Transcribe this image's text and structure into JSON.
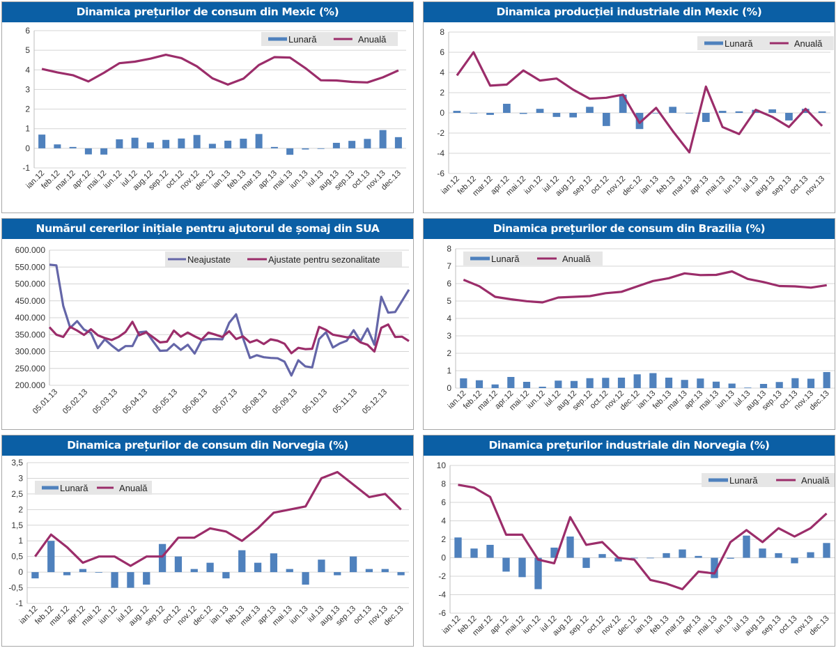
{
  "colors": {
    "title_bg": "#0b5fa5",
    "bar": "#4f81bd",
    "line": "#9b2d6a",
    "line_blue": "#6466a8",
    "legend_bg": "#e6e6e6"
  },
  "chart_data": [
    {
      "id": "mexic-cpi",
      "type": "bar+line",
      "title": "Dinamica prețurilor de consum din Mexic (%)",
      "categories": [
        "ian.12",
        "feb.12",
        "mar.12",
        "apr.12",
        "mai.12",
        "iun.12",
        "iul.12",
        "aug.12",
        "sep.12",
        "oct.12",
        "nov.12",
        "dec.12",
        "ian.13",
        "feb.13",
        "mar.13",
        "apr.13",
        "mai.13",
        "iun.13",
        "iul.13",
        "aug.13",
        "sep.13",
        "oct.13",
        "nov.13",
        "dec.13"
      ],
      "series": [
        {
          "name": "Lunară",
          "kind": "bar",
          "values": [
            0.7,
            0.2,
            0.07,
            -0.31,
            -0.32,
            0.46,
            0.54,
            0.3,
            0.43,
            0.5,
            0.68,
            0.23,
            0.39,
            0.49,
            0.73,
            0.07,
            -0.33,
            -0.06,
            -0.03,
            0.28,
            0.38,
            0.48,
            0.93,
            0.57
          ]
        },
        {
          "name": "Anuală",
          "kind": "line",
          "values": [
            4.05,
            3.87,
            3.73,
            3.41,
            3.85,
            4.34,
            4.42,
            4.57,
            4.77,
            4.6,
            4.18,
            3.57,
            3.25,
            3.55,
            4.25,
            4.65,
            4.63,
            4.09,
            3.47,
            3.46,
            3.39,
            3.36,
            3.62,
            3.97
          ]
        }
      ],
      "yticks": [
        "6",
        "5",
        "4",
        "3",
        "2",
        "1",
        "0",
        "-1"
      ],
      "ylim": [
        -1,
        6
      ],
      "legend": [
        "Lunară",
        "Anuală"
      ],
      "legend_position": "top-right",
      "grid": true
    },
    {
      "id": "mexic-ip",
      "type": "bar+line",
      "title": "Dinamica producției industriale din Mexic (%)",
      "categories": [
        "ian.12",
        "feb.12",
        "mar.12",
        "apr.12",
        "mai.12",
        "iun.12",
        "iul.12",
        "aug.12",
        "sep.12",
        "oct.12",
        "nov.12",
        "dec.12",
        "ian.13",
        "feb.13",
        "mar.13",
        "apr.13",
        "mai.13",
        "iun.13",
        "iul.13",
        "aug.13",
        "sep.13",
        "oct.13",
        "nov.13"
      ],
      "series": [
        {
          "name": "Lunară",
          "kind": "bar",
          "values": [
            0.2,
            0.0,
            -0.2,
            0.9,
            -0.1,
            0.4,
            -0.4,
            -0.45,
            0.6,
            -1.3,
            1.8,
            -1.6,
            0.0,
            0.6,
            0.0,
            -0.9,
            0.2,
            0.15,
            0.3,
            0.35,
            -0.75,
            0.4,
            0.15
          ]
        },
        {
          "name": "Anuală",
          "kind": "line",
          "values": [
            3.7,
            6.0,
            2.7,
            2.8,
            4.2,
            3.2,
            3.4,
            2.3,
            1.4,
            1.5,
            1.8,
            -1.0,
            0.5,
            -1.8,
            -3.9,
            2.6,
            -1.4,
            -2.1,
            0.3,
            -0.4,
            -1.4,
            0.4,
            -1.3
          ]
        }
      ],
      "yticks": [
        "8",
        "6",
        "4",
        "2",
        "0",
        "-2",
        "-4",
        "-6"
      ],
      "ylim": [
        -6,
        8
      ],
      "legend": [
        "Lunară",
        "Anuală"
      ],
      "legend_position": "top-right",
      "grid": true
    },
    {
      "id": "sua-claims",
      "type": "line",
      "title": "Numărul cererilor inițiale pentru ajutorul de șomaj din SUA",
      "x_tick_labels": [
        "05.01.13",
        "05.02.13",
        "05.03.13",
        "05.04.13",
        "05.05.13",
        "05.06.13",
        "05.07.13",
        "05.08.13",
        "05.09.13",
        "05.10.13",
        "05.11.13",
        "05.12.13"
      ],
      "series": [
        {
          "name": "Neajustate",
          "kind": "line",
          "values": [
            557000,
            555000,
            435000,
            370000,
            390000,
            365000,
            355000,
            310000,
            336000,
            318000,
            302000,
            316000,
            316000,
            357000,
            359000,
            330000,
            302000,
            303000,
            322000,
            305000,
            320000,
            294000,
            333000,
            337000,
            337000,
            336000,
            385000,
            410000,
            340000,
            281000,
            289000,
            283000,
            281000,
            280000,
            270000,
            229000,
            274000,
            256000,
            253000,
            337000,
            357000,
            312000,
            324000,
            332000,
            363000,
            330000,
            368000,
            320000,
            462000,
            415000,
            417000,
            450000,
            483000
          ]
        },
        {
          "name": "Ajustate pentru sezonalitate",
          "kind": "line",
          "values": [
            372000,
            350000,
            343000,
            373000,
            362000,
            349000,
            366000,
            348000,
            340000,
            334000,
            343000,
            358000,
            388000,
            348000,
            357000,
            342000,
            327000,
            329000,
            362000,
            344000,
            356000,
            345000,
            335000,
            356000,
            350000,
            343000,
            360000,
            337000,
            345000,
            327000,
            334000,
            322000,
            336000,
            332000,
            323000,
            295000,
            311000,
            307000,
            308000,
            373000,
            364000,
            350000,
            346000,
            342000,
            343000,
            327000,
            320000,
            300000,
            370000,
            380000,
            343000,
            344000,
            331000
          ]
        }
      ],
      "yticks": [
        "600.000",
        "550.000",
        "500.000",
        "450.000",
        "400.000",
        "350.000",
        "300.000",
        "250.000",
        "200.000"
      ],
      "ylim": [
        200000,
        600000
      ],
      "legend": [
        "Neajustate",
        "Ajustate pentru sezonalitate"
      ],
      "legend_position": "top-right",
      "grid": true
    },
    {
      "id": "brazilia-cpi",
      "type": "bar+line",
      "title": "Dinamica prețurilor de consum din Brazilia (%)",
      "categories": [
        "ian.12",
        "feb.12",
        "mar.12",
        "apr.12",
        "mai.12",
        "iun.12",
        "iul.12",
        "aug.12",
        "sep.12",
        "oct.12",
        "nov.12",
        "dec.12",
        "ian.13",
        "feb.13",
        "mar.13",
        "apr.13",
        "mai.13",
        "iun.13",
        "iul.13",
        "aug.13",
        "sep.13",
        "oct.13",
        "nov.13",
        "dec.13"
      ],
      "series": [
        {
          "name": "Lunară",
          "kind": "bar",
          "values": [
            0.56,
            0.45,
            0.21,
            0.64,
            0.36,
            0.08,
            0.43,
            0.41,
            0.57,
            0.59,
            0.6,
            0.79,
            0.86,
            0.6,
            0.47,
            0.55,
            0.37,
            0.26,
            0.03,
            0.24,
            0.35,
            0.57,
            0.54,
            0.92
          ]
        },
        {
          "name": "Anuală",
          "kind": "line",
          "values": [
            6.22,
            5.85,
            5.24,
            5.1,
            4.99,
            4.92,
            5.2,
            5.24,
            5.28,
            5.45,
            5.53,
            5.84,
            6.15,
            6.31,
            6.59,
            6.49,
            6.5,
            6.7,
            6.27,
            6.09,
            5.86,
            5.84,
            5.77,
            5.91
          ]
        }
      ],
      "yticks": [
        "8",
        "7",
        "6",
        "5",
        "4",
        "3",
        "2",
        "1",
        "0"
      ],
      "ylim": [
        0,
        8
      ],
      "legend": [
        "Lunară",
        "Anuală"
      ],
      "legend_position": "top-left",
      "grid": true
    },
    {
      "id": "norvegia-cpi",
      "type": "bar+line",
      "title": "Dinamica prețurilor de consum din Norvegia (%)",
      "categories": [
        "ian.12",
        "feb.12",
        "mar.12",
        "apr.12",
        "mai.12",
        "iun.12",
        "iul.12",
        "aug.12",
        "sep.12",
        "oct.12",
        "nov.12",
        "dec.12",
        "ian.13",
        "feb.13",
        "mar.13",
        "apr.13",
        "mai.13",
        "iun.13",
        "iul.13",
        "aug.13",
        "sep.13",
        "oct.13",
        "nov.13",
        "dec.13"
      ],
      "series": [
        {
          "name": "Lunară",
          "kind": "bar",
          "values": [
            -0.2,
            1.0,
            -0.1,
            0.1,
            0.0,
            -0.5,
            -0.5,
            -0.4,
            0.9,
            0.5,
            0.1,
            0.3,
            -0.2,
            0.7,
            0.3,
            0.6,
            0.1,
            -0.4,
            0.4,
            -0.1,
            0.5,
            0.1,
            0.1,
            -0.1
          ]
        },
        {
          "name": "Anuală",
          "kind": "line",
          "values": [
            0.5,
            1.2,
            0.8,
            0.3,
            0.5,
            0.5,
            0.2,
            0.5,
            0.5,
            1.1,
            1.1,
            1.4,
            1.3,
            1.0,
            1.4,
            1.9,
            2.0,
            2.1,
            3.0,
            3.2,
            2.8,
            2.4,
            2.5,
            2.0
          ]
        }
      ],
      "yticks": [
        "3,5",
        "3",
        "2,5",
        "2",
        "1,5",
        "1",
        "0,5",
        "0",
        "-0,5",
        "-1"
      ],
      "ylim": [
        -1,
        3.5
      ],
      "legend": [
        "Lunară",
        "Anuală"
      ],
      "legend_position": "top-left",
      "grid": true
    },
    {
      "id": "norvegia-ppi",
      "type": "bar+line",
      "title": "Dinamica prețurilor industriale din Norvegia (%)",
      "categories": [
        "ian.12",
        "feb.12",
        "mar.12",
        "apr.12",
        "mai.12",
        "iun.12",
        "iul.12",
        "aug.12",
        "sep.12",
        "oct.12",
        "nov.12",
        "dec.12",
        "ian.13",
        "feb.13",
        "mar.13",
        "apr.13",
        "mai.13",
        "iun.13",
        "iul.13",
        "aug.13",
        "sep.13",
        "oct.13",
        "nov.13",
        "dec.13"
      ],
      "series": [
        {
          "name": "Lunară",
          "kind": "bar",
          "values": [
            2.2,
            1.0,
            1.4,
            -1.5,
            -2.1,
            -3.4,
            1.1,
            2.3,
            -1.1,
            0.4,
            -0.4,
            0.0,
            0.0,
            0.5,
            0.9,
            0.2,
            -2.2,
            -0.1,
            2.4,
            1.0,
            0.5,
            -0.6,
            0.6,
            1.6
          ]
        },
        {
          "name": "Anuală",
          "kind": "line",
          "values": [
            7.9,
            7.6,
            6.6,
            2.5,
            2.5,
            -0.2,
            -0.6,
            4.4,
            1.4,
            1.7,
            0.0,
            -0.2,
            -2.4,
            -2.8,
            -3.4,
            -1.5,
            -1.7,
            1.7,
            3.0,
            1.7,
            3.2,
            2.3,
            3.2,
            4.8
          ]
        }
      ],
      "yticks": [
        "10",
        "8",
        "6",
        "4",
        "2",
        "0",
        "-2",
        "-4",
        "-6"
      ],
      "ylim": [
        -6,
        10
      ],
      "legend": [
        "Lunară",
        "Anuală"
      ],
      "legend_position": "top-right",
      "grid": true
    }
  ]
}
